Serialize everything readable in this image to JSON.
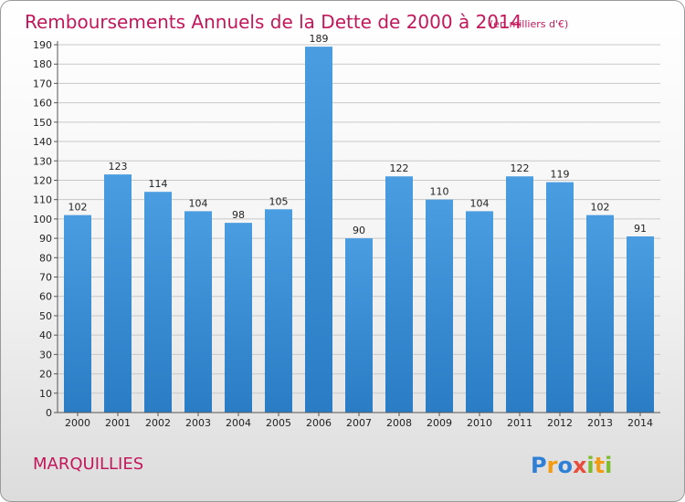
{
  "chart_data": {
    "type": "bar",
    "title": "Remboursements Annuels de la Dette de 2000 à 2014",
    "unit": "(en milliers d'€)",
    "categories": [
      "2000",
      "2001",
      "2002",
      "2003",
      "2004",
      "2005",
      "2006",
      "2007",
      "2008",
      "2009",
      "2010",
      "2011",
      "2012",
      "2013",
      "2014"
    ],
    "values": [
      102,
      123,
      114,
      104,
      98,
      105,
      189,
      90,
      122,
      110,
      104,
      122,
      119,
      102,
      91
    ],
    "ylim": [
      0,
      190
    ],
    "ytick_step": 10,
    "grid": true,
    "bar_color": "#4a9de0",
    "bar_color_dark": "#2a7cc4"
  },
  "footer": {
    "city": "MARQUILLIES",
    "logo_letters": [
      "P",
      "r",
      "o",
      "x",
      "i",
      "t",
      "i"
    ],
    "logo_colors": [
      "#2e7fd6",
      "#f39c12",
      "#2e7fd6",
      "#e74c3c",
      "#7dbb2f",
      "#f39c12",
      "#7dbb2f"
    ]
  }
}
